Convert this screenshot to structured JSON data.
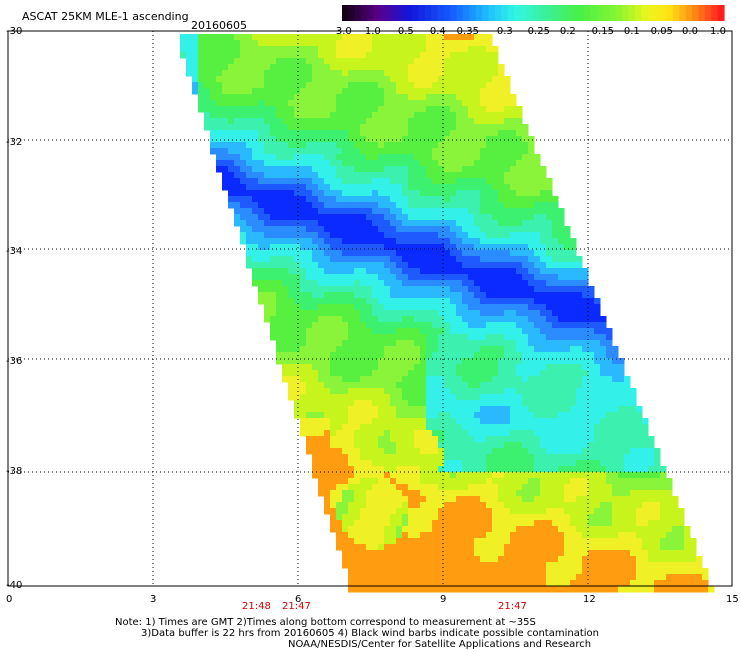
{
  "title": "ASCAT 25KM MLE-1 ascending",
  "date": "20160605",
  "colorbar": {
    "labels": [
      "-3.0",
      "-1.0",
      "-0.5",
      "-0.4",
      "-0.35",
      "-0.3",
      "-0.25",
      "-0.2",
      "-0.15",
      "-0.1",
      "-0.05",
      "0.0",
      "1.0"
    ],
    "colors": [
      "#1a0010",
      "#6a0a9a",
      "#0a2aff",
      "#2a72ff",
      "#2ab8ff",
      "#33f0e8",
      "#3cf09a",
      "#48f040",
      "#7cf43a",
      "#c8f41e",
      "#fff026",
      "#ff9c10",
      "#ff3010"
    ]
  },
  "axes": {
    "y_labels": [
      "-30",
      "-32",
      "-34",
      "-36",
      "-38",
      "-40"
    ],
    "x_labels": [
      "0",
      "3",
      "6",
      "9",
      "12",
      "15"
    ]
  },
  "times": [
    "21:48",
    "21:47",
    "21:47"
  ],
  "footer": {
    "line1": "Note: 1) Times are GMT 2)Times along bottom correspond to measurement at ~35S",
    "line2": "3)Data buffer is 22 hrs from 20160605 4) Black wind barbs indicate possible contamination",
    "line3": "NOAA/NESDIS/Center for Satellite Applications and Research"
  },
  "swath": {
    "region": {
      "lon": [
        0,
        15
      ],
      "lat": [
        -40,
        -30
      ]
    }
  }
}
